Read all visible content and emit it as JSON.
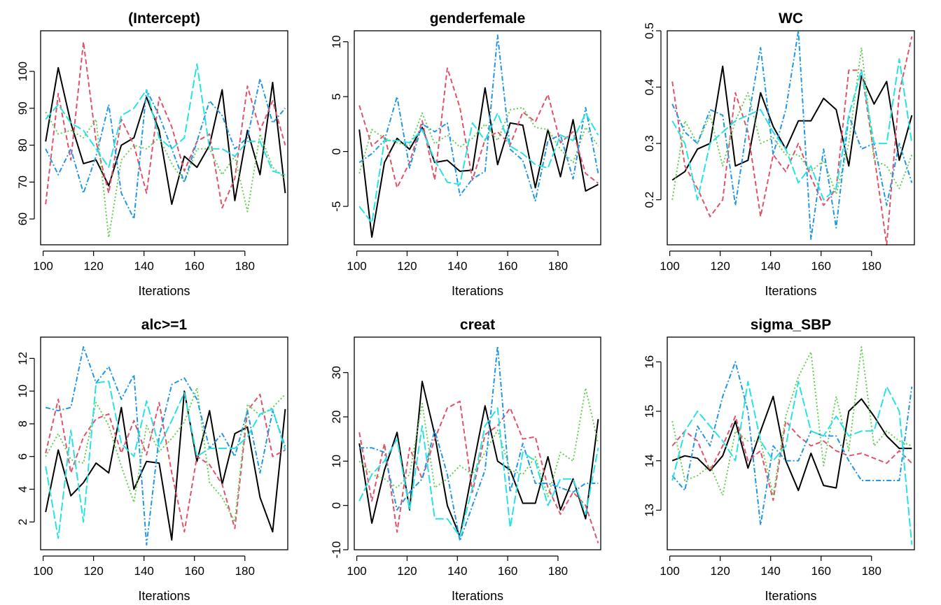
{
  "series_styles": [
    {
      "color": "#000000",
      "dash": ""
    },
    {
      "color": "#DF536B",
      "dash": "7,4"
    },
    {
      "color": "#61D04F",
      "dash": "2,3"
    },
    {
      "color": "#2297E6",
      "dash": "7,3,2,3"
    },
    {
      "color": "#28E2E5",
      "dash": "12,4"
    }
  ],
  "chart_data": [
    {
      "type": "line",
      "title": "(Intercept)",
      "xlabel": "Iterations",
      "ylabel": "",
      "xlim": [
        99,
        197
      ],
      "ylim": [
        53,
        111
      ],
      "xticks": [
        100,
        120,
        140,
        160,
        180
      ],
      "yticks": [
        60,
        70,
        80,
        90,
        100
      ],
      "x": [
        101,
        106,
        111,
        116,
        121,
        126,
        131,
        136,
        141,
        146,
        151,
        156,
        161,
        166,
        171,
        176,
        181,
        186,
        191,
        196
      ],
      "series": [
        {
          "values": [
            81,
            101,
            86,
            75,
            76,
            69,
            80,
            82,
            93,
            84,
            64,
            77,
            74,
            80,
            95,
            65,
            84,
            72,
            97,
            67
          ]
        },
        {
          "values": [
            64,
            94,
            76,
            108,
            81,
            67,
            87,
            80,
            67,
            93,
            85,
            73,
            81,
            83,
            63,
            71,
            96,
            84,
            92,
            80
          ]
        },
        {
          "values": [
            89,
            83,
            84,
            82,
            87,
            55,
            76,
            80,
            79,
            82,
            75,
            70,
            79,
            79,
            72,
            77,
            62,
            83,
            74,
            71
          ]
        },
        {
          "values": [
            79,
            72,
            79,
            67,
            77,
            91,
            67,
            60,
            95,
            88,
            79,
            70,
            81,
            92,
            88,
            79,
            82,
            98,
            86,
            90
          ]
        },
        {
          "values": [
            87,
            91,
            86,
            84,
            79,
            74,
            88,
            90,
            95,
            82,
            79,
            82,
            102,
            79,
            79,
            77,
            81,
            81,
            73,
            72
          ]
        }
      ]
    },
    {
      "type": "line",
      "title": "genderfemale",
      "xlabel": "Iterations",
      "ylabel": "",
      "xlim": [
        99,
        197
      ],
      "ylim": [
        -8.5,
        11
      ],
      "xticks": [
        100,
        120,
        140,
        160,
        180
      ],
      "yticks": [
        -5,
        0,
        5,
        10
      ],
      "x": [
        101,
        106,
        111,
        116,
        121,
        126,
        131,
        136,
        141,
        146,
        151,
        156,
        161,
        166,
        171,
        176,
        181,
        186,
        191,
        196
      ],
      "series": [
        {
          "values": [
            2.0,
            -7.8,
            -1.0,
            1.2,
            0.2,
            2.2,
            -1.0,
            -0.8,
            -1.8,
            -1.7,
            5.8,
            -1.2,
            2.6,
            2.4,
            -3.3,
            2.0,
            -2.3,
            2.9,
            -3.6,
            -3.0
          ]
        },
        {
          "values": [
            4.2,
            0.5,
            1.5,
            -3.3,
            -1.0,
            2.8,
            -2.6,
            7.6,
            4.0,
            -2.6,
            1.1,
            1.8,
            0.6,
            3.6,
            2.7,
            5.2,
            0.8,
            1.8,
            -2.0,
            -2.9
          ]
        },
        {
          "values": [
            -2.0,
            2.0,
            1.2,
            0.8,
            0.5,
            3.5,
            0.7,
            1.5,
            0.4,
            1.2,
            2.5,
            1.0,
            3.8,
            4.0,
            2.2,
            2.0,
            0.2,
            -1.0,
            2.2,
            0.5
          ]
        },
        {
          "values": [
            -1.0,
            -0.2,
            1.0,
            5.0,
            -1.5,
            2.5,
            1.8,
            2.6,
            -4.0,
            -2.5,
            -1.8,
            10.6,
            0.2,
            -0.8,
            -4.5,
            1.0,
            1.5,
            -2.5,
            4.0,
            -2.0
          ]
        },
        {
          "values": [
            -5.0,
            -6.5,
            1.0,
            1.0,
            0.8,
            2.0,
            -0.8,
            -2.8,
            -3.0,
            2.6,
            1.0,
            3.5,
            0.5,
            -0.2,
            -1.2,
            -1.5,
            1.5,
            1.0,
            3.5,
            1.5
          ]
        }
      ]
    },
    {
      "type": "line",
      "title": "WC",
      "xlabel": "Iterations",
      "ylabel": "",
      "xlim": [
        99,
        197
      ],
      "ylim": [
        0.12,
        0.5
      ],
      "xticks": [
        100,
        120,
        140,
        160,
        180
      ],
      "yticks": [
        0.2,
        0.3,
        0.4,
        0.5
      ],
      "x": [
        101,
        106,
        111,
        116,
        121,
        126,
        131,
        136,
        141,
        146,
        151,
        156,
        161,
        166,
        171,
        176,
        181,
        186,
        191,
        196
      ],
      "series": [
        {
          "values": [
            0.235,
            0.25,
            0.29,
            0.3,
            0.437,
            0.26,
            0.27,
            0.39,
            0.33,
            0.29,
            0.34,
            0.34,
            0.38,
            0.36,
            0.26,
            0.42,
            0.37,
            0.41,
            0.27,
            0.35
          ]
        },
        {
          "values": [
            0.41,
            0.26,
            0.22,
            0.17,
            0.2,
            0.39,
            0.32,
            0.17,
            0.28,
            0.25,
            0.3,
            0.24,
            0.19,
            0.22,
            0.43,
            0.43,
            0.28,
            0.12,
            0.39,
            0.49
          ]
        },
        {
          "values": [
            0.2,
            0.34,
            0.3,
            0.35,
            0.26,
            0.34,
            0.39,
            0.3,
            0.31,
            0.28,
            0.28,
            0.25,
            0.27,
            0.21,
            0.3,
            0.47,
            0.27,
            0.26,
            0.22,
            0.28
          ]
        },
        {
          "values": [
            0.37,
            0.32,
            0.3,
            0.36,
            0.35,
            0.19,
            0.34,
            0.47,
            0.28,
            0.36,
            0.5,
            0.13,
            0.29,
            0.15,
            0.35,
            0.29,
            0.3,
            0.19,
            0.3,
            0.23
          ]
        },
        {
          "values": [
            0.34,
            0.3,
            0.2,
            0.3,
            0.32,
            0.34,
            0.35,
            0.36,
            0.32,
            0.29,
            0.23,
            0.26,
            0.2,
            0.22,
            0.35,
            0.43,
            0.3,
            0.3,
            0.45,
            0.3
          ]
        }
      ]
    },
    {
      "type": "line",
      "title": "alc>=1",
      "xlabel": "Iterations",
      "ylabel": "",
      "xlim": [
        99,
        197
      ],
      "ylim": [
        0.3,
        13.3
      ],
      "xticks": [
        100,
        120,
        140,
        160,
        180
      ],
      "yticks": [
        2,
        4,
        6,
        8,
        10,
        12
      ],
      "x": [
        101,
        106,
        111,
        116,
        121,
        126,
        131,
        136,
        141,
        146,
        151,
        156,
        161,
        166,
        171,
        176,
        181,
        186,
        191,
        196
      ],
      "series": [
        {
          "values": [
            2.6,
            6.4,
            3.6,
            4.4,
            5.6,
            5.0,
            9.0,
            4.0,
            5.7,
            5.6,
            0.9,
            10.0,
            5.7,
            8.8,
            4.3,
            7.4,
            7.8,
            3.5,
            1.4,
            8.9
          ]
        },
        {
          "values": [
            6.2,
            9.5,
            5.0,
            7.2,
            8.3,
            8.6,
            6.2,
            8.2,
            6.1,
            9.3,
            5.0,
            1.4,
            6.0,
            5.5,
            4.3,
            1.6,
            8.8,
            9.8,
            6.0,
            6.4
          ]
        },
        {
          "values": [
            6.0,
            7.4,
            5.8,
            5.6,
            9.3,
            7.9,
            5.4,
            3.2,
            7.9,
            6.3,
            7.1,
            8.1,
            10.2,
            4.4,
            3.5,
            2.0,
            9.2,
            8.5,
            9.0,
            9.8
          ]
        },
        {
          "values": [
            9.0,
            8.8,
            9.0,
            12.7,
            10.5,
            11.5,
            9.5,
            11.0,
            0.6,
            7.2,
            10.4,
            10.8,
            9.5,
            6.5,
            7.4,
            6.0,
            8.8,
            5.0,
            8.8,
            6.6
          ]
        },
        {
          "values": [
            5.4,
            1.0,
            7.6,
            2.0,
            10.5,
            10.6,
            6.8,
            6.0,
            9.4,
            6.6,
            8.2,
            9.9,
            6.0,
            6.5,
            6.5,
            6.5,
            7.2,
            8.6,
            8.9,
            6.4
          ]
        }
      ]
    },
    {
      "type": "line",
      "title": "creat",
      "xlabel": "Iterations",
      "ylabel": "",
      "xlim": [
        99,
        197
      ],
      "ylim": [
        -10,
        38
      ],
      "xticks": [
        100,
        120,
        140,
        160,
        180
      ],
      "yticks": [
        -10,
        0,
        10,
        20,
        30
      ],
      "x": [
        101,
        106,
        111,
        116,
        121,
        126,
        131,
        136,
        141,
        146,
        151,
        156,
        161,
        166,
        171,
        176,
        181,
        186,
        191,
        196
      ],
      "series": [
        {
          "values": [
            14,
            -4,
            8,
            16.5,
            -1,
            28,
            16,
            0,
            -7,
            8,
            22.5,
            10,
            8,
            0.5,
            0.5,
            11,
            -1,
            6,
            -3,
            19.5
          ]
        },
        {
          "values": [
            16.5,
            1,
            14,
            -6,
            13,
            6,
            15,
            22,
            23.5,
            3,
            16,
            18,
            22,
            15,
            15.5,
            4,
            -2,
            3,
            0,
            -8.5
          ]
        },
        {
          "values": [
            10,
            7,
            6,
            4,
            7,
            23,
            4,
            6,
            9,
            7,
            12,
            17,
            8,
            7,
            11,
            2,
            12,
            10,
            26.5,
            14
          ]
        },
        {
          "values": [
            13,
            13,
            12,
            -1,
            3,
            6,
            17,
            7,
            -8,
            0,
            8,
            36,
            3,
            14,
            5,
            5,
            4,
            3,
            5,
            5
          ]
        },
        {
          "values": [
            1,
            7,
            10,
            15,
            -1,
            18,
            -3,
            -3,
            -7,
            4,
            18,
            22,
            -5,
            12,
            10,
            0,
            6,
            6,
            -2,
            13
          ]
        }
      ]
    },
    {
      "type": "line",
      "title": "sigma_SBP",
      "xlabel": "Iterations",
      "ylabel": "",
      "xlim": [
        99,
        197
      ],
      "ylim": [
        12.2,
        16.5
      ],
      "xticks": [
        100,
        120,
        140,
        160,
        180
      ],
      "yticks": [
        13,
        14,
        15,
        16
      ],
      "x": [
        101,
        106,
        111,
        116,
        121,
        126,
        131,
        136,
        141,
        146,
        151,
        156,
        161,
        166,
        171,
        176,
        181,
        186,
        191,
        196
      ],
      "series": [
        {
          "values": [
            14.0,
            14.1,
            14.05,
            13.8,
            14.1,
            14.8,
            13.85,
            14.6,
            15.3,
            14.0,
            13.4,
            14.15,
            13.5,
            13.45,
            15.0,
            15.25,
            14.9,
            14.5,
            14.25,
            14.25
          ]
        },
        {
          "values": [
            14.3,
            14.6,
            14.4,
            13.8,
            14.3,
            14.9,
            14.0,
            14.2,
            13.2,
            14.8,
            14.5,
            14.3,
            14.4,
            14.2,
            14.1,
            14.15,
            14.05,
            13.95,
            14.2,
            13.95
          ]
        },
        {
          "values": [
            14.8,
            13.6,
            13.7,
            13.9,
            13.3,
            14.6,
            14.4,
            14.4,
            13.3,
            14.9,
            15.7,
            16.2,
            13.9,
            15.3,
            14.2,
            16.3,
            14.3,
            14.6,
            14.4,
            14.3
          ]
        },
        {
          "values": [
            13.7,
            13.4,
            14.7,
            14.3,
            15.3,
            16.0,
            15.0,
            12.7,
            14.3,
            14.0,
            14.0,
            14.6,
            14.5,
            14.5,
            14.0,
            13.6,
            13.6,
            13.6,
            13.6,
            15.5
          ]
        },
        {
          "values": [
            13.6,
            14.6,
            15.0,
            14.7,
            14.4,
            14.0,
            15.6,
            14.4,
            14.0,
            14.3,
            15.6,
            14.6,
            14.5,
            14.9,
            14.5,
            14.6,
            14.6,
            15.5,
            15.0,
            12.3
          ]
        }
      ]
    }
  ]
}
